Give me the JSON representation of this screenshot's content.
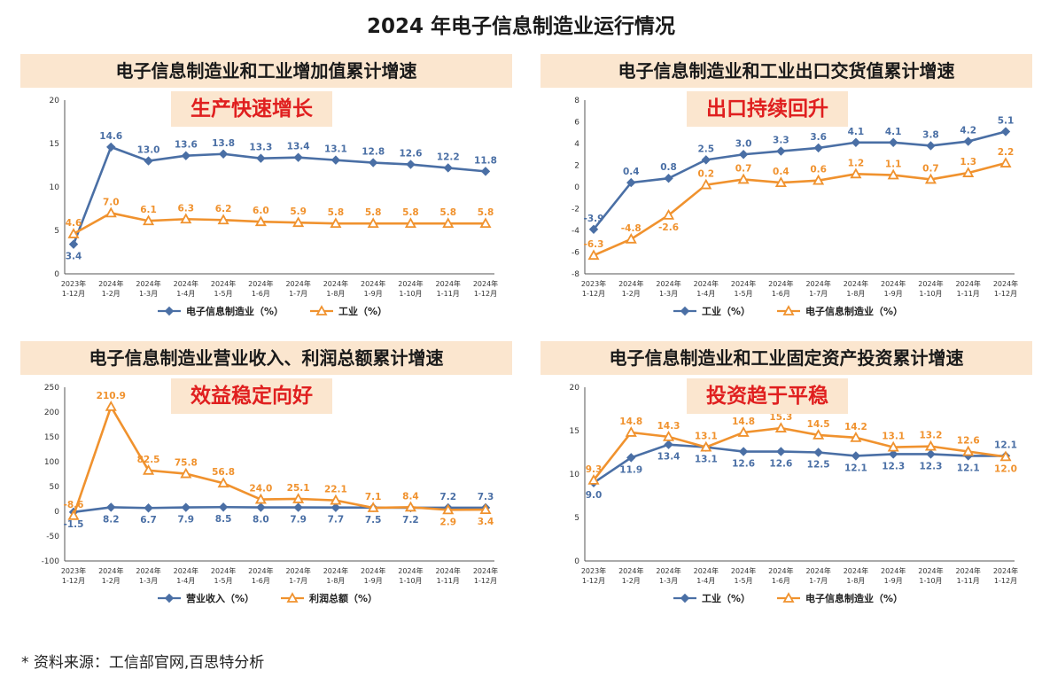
{
  "page_title": "2024 年电子信息制造业运行情况",
  "footnote": "*  资料来源：工信部官网,百思特分析",
  "colors": {
    "blue": "#4a6fa5",
    "orange": "#f0922e",
    "tag_bg": "#fbe6cf",
    "tag_text": "#e01f1f"
  },
  "chart_data": [
    {
      "id": "c1",
      "type": "line",
      "title": "电子信息制造业和工业增加值累计增速",
      "tagline": "生产快速增长",
      "categories": [
        "2023年|1-12月",
        "2024年|1-2月",
        "2024年|1-3月",
        "2024年|1-4月",
        "2024年|1-5月",
        "2024年|1-6月",
        "2024年|1-7月",
        "2024年|1-8月",
        "2024年|1-9月",
        "2024年|1-10月",
        "2024年|1-11月",
        "2024年|1-12月"
      ],
      "ylim": [
        0,
        20
      ],
      "yticks": [
        0,
        5,
        10,
        15,
        20
      ],
      "series": [
        {
          "name": "电子信息制造业（%）",
          "color": "#4a6fa5",
          "marker": "diamond",
          "values": [
            3.4,
            14.6,
            13.0,
            13.6,
            13.8,
            13.3,
            13.4,
            13.1,
            12.8,
            12.6,
            12.2,
            11.8
          ],
          "labels": [
            "3.4",
            "14.6",
            "13.0",
            "13.6",
            "13.8",
            "13.3",
            "13.4",
            "13.1",
            "12.8",
            "12.6",
            "12.2",
            "11.8"
          ],
          "label_pos": [
            "below",
            "above",
            "above",
            "above",
            "above",
            "above",
            "above",
            "above",
            "above",
            "above",
            "above",
            "above"
          ]
        },
        {
          "name": "工业（%）",
          "color": "#f0922e",
          "marker": "triangle",
          "values": [
            4.6,
            7.0,
            6.1,
            6.3,
            6.2,
            6.0,
            5.9,
            5.8,
            5.8,
            5.8,
            5.8,
            5.8
          ],
          "labels": [
            "4.6",
            "7.0",
            "6.1",
            "6.3",
            "6.2",
            "6.0",
            "5.9",
            "5.8",
            "5.8",
            "5.8",
            "5.8",
            "5.8"
          ],
          "label_pos": [
            "above",
            "above",
            "above",
            "above",
            "above",
            "above",
            "above",
            "above",
            "above",
            "above",
            "above",
            "above"
          ]
        }
      ]
    },
    {
      "id": "c2",
      "type": "line",
      "title": "电子信息制造业和工业出口交货值累计增速",
      "tagline": "出口持续回升",
      "categories": [
        "2023年|1-12月",
        "2024年|1-2月",
        "2024年|1-3月",
        "2024年|1-4月",
        "2024年|1-5月",
        "2024年|1-6月",
        "2024年|1-7月",
        "2024年|1-8月",
        "2024年|1-9月",
        "2024年|1-10月",
        "2024年|1-11月",
        "2024年|1-12月"
      ],
      "ylim": [
        -8,
        8
      ],
      "yticks": [
        -8,
        -6,
        -4,
        -2,
        0,
        2,
        4,
        6,
        8
      ],
      "series": [
        {
          "name": "工业（%）",
          "color": "#4a6fa5",
          "marker": "diamond",
          "values": [
            -3.9,
            0.4,
            0.8,
            2.5,
            3.0,
            3.3,
            3.6,
            4.1,
            4.1,
            3.8,
            4.2,
            5.1
          ],
          "labels": [
            "-3.9",
            "0.4",
            "0.8",
            "2.5",
            "3.0",
            "3.3",
            "3.6",
            "4.1",
            "4.1",
            "3.8",
            "4.2",
            "5.1"
          ],
          "label_pos": [
            "above",
            "above",
            "above",
            "above",
            "above",
            "above",
            "above",
            "above",
            "above",
            "above",
            "above",
            "above"
          ]
        },
        {
          "name": "电子信息制造业（%）",
          "color": "#f0922e",
          "marker": "triangle",
          "values": [
            -6.3,
            -4.8,
            -2.6,
            0.2,
            0.7,
            0.4,
            0.6,
            1.2,
            1.1,
            0.7,
            1.3,
            2.2
          ],
          "labels": [
            "-6.3",
            "-4.8",
            "-2.6",
            "0.2",
            "0.7",
            "0.4",
            "0.6",
            "1.2",
            "1.1",
            "0.7",
            "1.3",
            "2.2"
          ],
          "label_pos": [
            "above",
            "above",
            "below",
            "above",
            "above",
            "above",
            "above",
            "above",
            "above",
            "above",
            "above",
            "above"
          ]
        }
      ]
    },
    {
      "id": "c3",
      "type": "line",
      "title": "电子信息制造业营业收入、利润总额累计增速",
      "tagline": "效益稳定向好",
      "categories": [
        "2023年|1-12月",
        "2024年|1-2月",
        "2024年|1-3月",
        "2024年|1-4月",
        "2024年|1-5月",
        "2024年|1-6月",
        "2024年|1-7月",
        "2024年|1-8月",
        "2024年|1-9月",
        "2024年|1-10月",
        "2024年|1-11月",
        "2024年|1-12月"
      ],
      "ylim": [
        -100,
        250
      ],
      "yticks": [
        -100,
        -50,
        0,
        50,
        100,
        150,
        200,
        250
      ],
      "series": [
        {
          "name": "营业收入（%）",
          "color": "#4a6fa5",
          "marker": "diamond",
          "values": [
            -1.5,
            8.2,
            6.7,
            7.9,
            8.5,
            8.0,
            7.9,
            7.7,
            7.5,
            7.2,
            7.2,
            7.3
          ],
          "labels": [
            "-1.5",
            "8.2",
            "6.7",
            "7.9",
            "8.5",
            "8.0",
            "7.9",
            "7.7",
            "7.5",
            "7.2",
            "7.2",
            "7.3"
          ],
          "label_pos": [
            "below",
            "below",
            "below",
            "below",
            "below",
            "below",
            "below",
            "below",
            "below",
            "below",
            "above",
            "above"
          ]
        },
        {
          "name": "利润总额（%）",
          "color": "#f0922e",
          "marker": "triangle",
          "values": [
            -8.6,
            210.9,
            82.5,
            75.8,
            56.8,
            24.0,
            25.1,
            22.1,
            7.1,
            8.4,
            2.9,
            3.4
          ],
          "labels": [
            "-8.6",
            "210.9",
            "82.5",
            "75.8",
            "56.8",
            "24.0",
            "25.1",
            "22.1",
            "7.1",
            "8.4",
            "2.9",
            "3.4"
          ],
          "label_pos": [
            "above",
            "above",
            "above",
            "above",
            "above",
            "above",
            "above",
            "above",
            "above",
            "above",
            "below",
            "below"
          ]
        }
      ]
    },
    {
      "id": "c4",
      "type": "line",
      "title": "电子信息制造业和工业固定资产投资累计增速",
      "tagline": "投资趋于平稳",
      "categories": [
        "2023年|1-12月",
        "2024年|1-2月",
        "2024年|1-3月",
        "2024年|1-4月",
        "2024年|1-5月",
        "2024年|1-6月",
        "2024年|1-7月",
        "2024年|1-8月",
        "2024年|1-9月",
        "2024年|1-10月",
        "2024年|1-11月",
        "2024年|1-12月"
      ],
      "ylim": [
        0,
        20
      ],
      "yticks": [
        0,
        5,
        10,
        15,
        20
      ],
      "series": [
        {
          "name": "工业（%）",
          "color": "#4a6fa5",
          "marker": "diamond",
          "values": [
            9.0,
            11.9,
            13.4,
            13.1,
            12.6,
            12.6,
            12.5,
            12.1,
            12.3,
            12.3,
            12.1,
            12.1
          ],
          "labels": [
            "9.0",
            "11.9",
            "13.4",
            "13.1",
            "12.6",
            "12.6",
            "12.5",
            "12.1",
            "12.3",
            "12.3",
            "12.1",
            "12.1"
          ],
          "label_pos": [
            "below",
            "below",
            "below",
            "below",
            "below",
            "below",
            "below",
            "below",
            "below",
            "below",
            "below",
            "above"
          ]
        },
        {
          "name": "电子信息制造业（%）",
          "color": "#f0922e",
          "marker": "triangle",
          "values": [
            9.3,
            14.8,
            14.3,
            13.1,
            14.8,
            15.3,
            14.5,
            14.2,
            13.1,
            13.2,
            12.6,
            12.0
          ],
          "labels": [
            "9.3",
            "14.8",
            "14.3",
            "13.1",
            "14.8",
            "15.3",
            "14.5",
            "14.2",
            "13.1",
            "13.2",
            "12.6",
            "12.0"
          ],
          "label_pos": [
            "above",
            "above",
            "above",
            "above",
            "above",
            "above",
            "above",
            "above",
            "above",
            "above",
            "above",
            "below"
          ]
        }
      ]
    }
  ]
}
